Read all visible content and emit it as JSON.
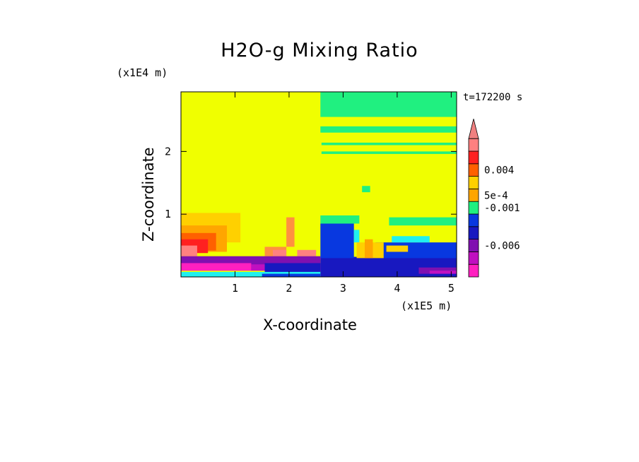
{
  "chart_data": {
    "type": "heatmap",
    "title": "H2O-g Mixing Ratio",
    "xlabel": "X-coordinate",
    "ylabel": "Z-coordinate",
    "x_scale_label": "(x1E5 m)",
    "z_scale_label": "(x1E4 m)",
    "time_label": "t=172200 s",
    "x_ticks": [
      {
        "v": 1,
        "label": "1"
      },
      {
        "v": 2,
        "label": "2"
      },
      {
        "v": 3,
        "label": "3"
      },
      {
        "v": 4,
        "label": "4"
      },
      {
        "v": 5,
        "label": "5"
      }
    ],
    "z_ticks": [
      {
        "v": 1,
        "label": "1"
      },
      {
        "v": 2,
        "label": "2"
      }
    ],
    "xlim": [
      0,
      5.1
    ],
    "zlim": [
      0,
      2.95
    ],
    "colorbar": {
      "colors": [
        "#ff20c0",
        "#c010c0",
        "#8010b0",
        "#1818c0",
        "#0838e0",
        "#20f080",
        "#ffa500",
        "#ffd000",
        "#ff6000",
        "#ff2020",
        "#ff8080"
      ],
      "extend_color": "#f08080",
      "labels": [
        {
          "boundary": 2.5,
          "text": "-0.006"
        },
        {
          "boundary": 5.5,
          "text": "-0.001"
        },
        {
          "boundary": 6.5,
          "text": "5e-4"
        },
        {
          "boundary": 8.5,
          "text": "0.004"
        }
      ]
    },
    "regions": [
      {
        "color": "#f0ff00",
        "x": [
          0,
          5.1
        ],
        "z": [
          0,
          2.95
        ]
      },
      {
        "color": "#ffd000",
        "x": [
          0,
          1.1
        ],
        "z": [
          0.55,
          1.02
        ]
      },
      {
        "color": "#ffa500",
        "x": [
          0,
          0.85
        ],
        "z": [
          0.4,
          0.82
        ]
      },
      {
        "color": "#ff6000",
        "x": [
          0,
          0.65
        ],
        "z": [
          0.42,
          0.7
        ]
      },
      {
        "color": "#ff2020",
        "x": [
          0,
          0.5
        ],
        "z": [
          0.38,
          0.6
        ]
      },
      {
        "color": "#ff8080",
        "x": [
          0,
          0.3
        ],
        "z": [
          0.33,
          0.5
        ]
      },
      {
        "color": "#ff9040",
        "x": [
          1.55,
          1.95
        ],
        "z": [
          0.33,
          0.48
        ]
      },
      {
        "color": "#ff9040",
        "x": [
          1.95,
          2.1
        ],
        "z": [
          0.48,
          0.95
        ]
      },
      {
        "color": "#ff8080",
        "x": [
          1.7,
          1.95
        ],
        "z": [
          0.33,
          0.43
        ]
      },
      {
        "color": "#ff8080",
        "x": [
          2.15,
          2.5
        ],
        "z": [
          0.33,
          0.43
        ]
      },
      {
        "color": "#20f080",
        "x": [
          2.58,
          5.1
        ],
        "z": [
          2.55,
          2.95
        ]
      },
      {
        "color": "#20f080",
        "x": [
          2.58,
          5.1
        ],
        "z": [
          2.3,
          2.4
        ]
      },
      {
        "color": "#20f080",
        "x": [
          2.6,
          5.1
        ],
        "z": [
          2.1,
          2.14
        ]
      },
      {
        "color": "#20f080",
        "x": [
          2.6,
          5.1
        ],
        "z": [
          1.96,
          2.0
        ]
      },
      {
        "color": "#20f080",
        "x": [
          3.35,
          3.5
        ],
        "z": [
          1.35,
          1.45
        ]
      },
      {
        "color": "#20f080",
        "x": [
          3.85,
          5.1
        ],
        "z": [
          0.82,
          0.95
        ]
      },
      {
        "color": "#20f080",
        "x": [
          2.58,
          3.3
        ],
        "z": [
          0.85,
          0.98
        ]
      },
      {
        "color": "#1818c0",
        "x": [
          2.58,
          5.1
        ],
        "z": [
          0.0,
          0.32
        ]
      },
      {
        "color": "#0838e0",
        "x": [
          2.58,
          3.2
        ],
        "z": [
          0.3,
          0.85
        ]
      },
      {
        "color": "#0838e0",
        "x": [
          3.6,
          5.1
        ],
        "z": [
          0.3,
          0.55
        ]
      },
      {
        "color": "#20f0f0",
        "x": [
          3.2,
          3.3
        ],
        "z": [
          0.55,
          0.75
        ]
      },
      {
        "color": "#20f0f0",
        "x": [
          3.9,
          4.6
        ],
        "z": [
          0.55,
          0.65
        ]
      },
      {
        "color": "#ffd000",
        "x": [
          3.25,
          3.75
        ],
        "z": [
          0.3,
          0.55
        ]
      },
      {
        "color": "#ffa500",
        "x": [
          3.4,
          3.55
        ],
        "z": [
          0.3,
          0.6
        ]
      },
      {
        "color": "#ffd000",
        "x": [
          3.8,
          4.2
        ],
        "z": [
          0.4,
          0.5
        ]
      },
      {
        "color": "#8010b0",
        "x": [
          0,
          2.58
        ],
        "z": [
          0.1,
          0.33
        ]
      },
      {
        "color": "#ff20c0",
        "x": [
          0,
          1.3
        ],
        "z": [
          0.1,
          0.22
        ]
      },
      {
        "color": "#c010c0",
        "x": [
          1.3,
          2.58
        ],
        "z": [
          0.1,
          0.2
        ]
      },
      {
        "color": "#1818c0",
        "x": [
          1.55,
          2.58
        ],
        "z": [
          0.05,
          0.22
        ]
      },
      {
        "color": "#20f0f0",
        "x": [
          0,
          2.58
        ],
        "z": [
          0,
          0.08
        ]
      },
      {
        "color": "#0838e0",
        "x": [
          1.5,
          2.58
        ],
        "z": [
          0,
          0.05
        ]
      },
      {
        "color": "#8010b0",
        "x": [
          4.4,
          5.1
        ],
        "z": [
          0.05,
          0.15
        ]
      },
      {
        "color": "#c010c0",
        "x": [
          4.6,
          5.1
        ],
        "z": [
          0.05,
          0.1
        ]
      }
    ]
  }
}
